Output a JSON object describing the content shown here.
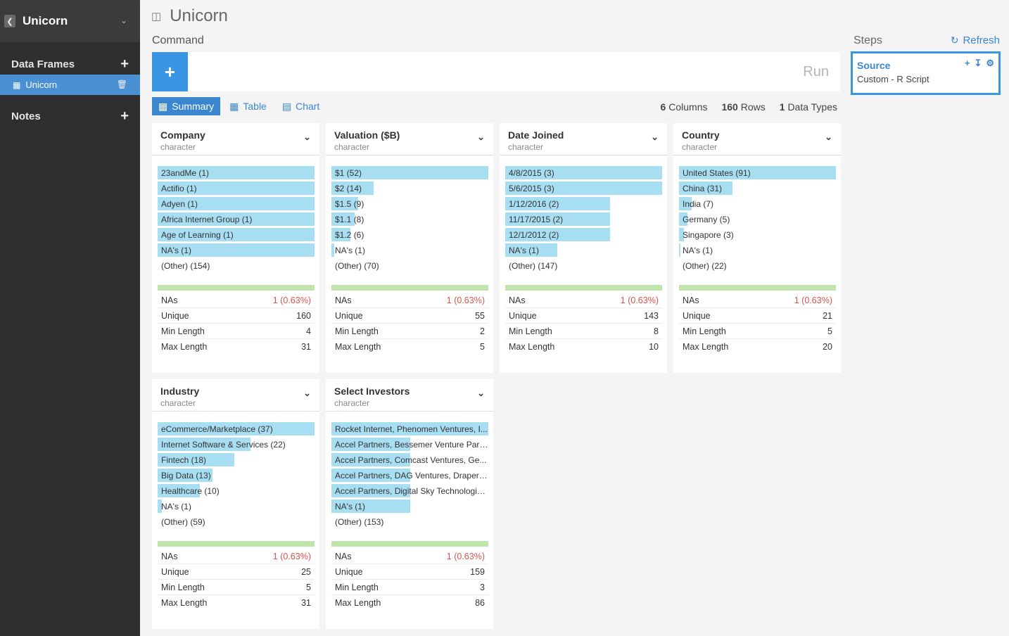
{
  "sidebar": {
    "title": "Unicorn",
    "data_frames_label": "Data Frames",
    "item_label": "Unicorn",
    "notes_label": "Notes"
  },
  "main": {
    "title": "Unicorn",
    "command_label": "Command",
    "run_label": "Run",
    "tabs": [
      {
        "label": "Summary"
      },
      {
        "label": "Table"
      },
      {
        "label": "Chart"
      }
    ],
    "stats": {
      "columns_num": "6",
      "columns_label": "Columns",
      "rows_num": "160",
      "rows_label": "Rows",
      "types_num": "1",
      "types_label": "Data Types"
    }
  },
  "steps": {
    "label": "Steps",
    "refresh_label": "Refresh",
    "source_title": "Source",
    "source_desc": "Custom - R Script"
  },
  "columns": [
    {
      "title": "Company",
      "type": "character",
      "freq": [
        {
          "label": "23andMe (1)",
          "fill": 1.0
        },
        {
          "label": "Actifio (1)",
          "fill": 1.0
        },
        {
          "label": "Adyen (1)",
          "fill": 1.0
        },
        {
          "label": "Africa Internet Group (1)",
          "fill": 1.0
        },
        {
          "label": "Age of Learning (1)",
          "fill": 1.0
        },
        {
          "label": "NA's (1)",
          "fill": 1.0
        },
        {
          "label": "(Other) (154)",
          "fill": 0
        }
      ],
      "summary": [
        {
          "label": "NAs",
          "value": "1 (0.63%)"
        },
        {
          "label": "Unique",
          "value": "160"
        },
        {
          "label": "Min Length",
          "value": "4"
        },
        {
          "label": "Max Length",
          "value": "31"
        }
      ]
    },
    {
      "title": "Valuation ($B)",
      "type": "character",
      "freq": [
        {
          "label": "$1 (52)",
          "fill": 1.0
        },
        {
          "label": "$2 (14)",
          "fill": 0.27
        },
        {
          "label": "$1.5 (9)",
          "fill": 0.17
        },
        {
          "label": "$1.1 (8)",
          "fill": 0.15
        },
        {
          "label": "$1.2 (6)",
          "fill": 0.12
        },
        {
          "label": "NA's (1)",
          "fill": 0.02
        },
        {
          "label": "(Other) (70)",
          "fill": 0
        }
      ],
      "summary": [
        {
          "label": "NAs",
          "value": "1 (0.63%)"
        },
        {
          "label": "Unique",
          "value": "55"
        },
        {
          "label": "Min Length",
          "value": "2"
        },
        {
          "label": "Max Length",
          "value": "5"
        }
      ]
    },
    {
      "title": "Date Joined",
      "type": "character",
      "freq": [
        {
          "label": "4/8/2015 (3)",
          "fill": 1.0
        },
        {
          "label": "5/6/2015 (3)",
          "fill": 1.0
        },
        {
          "label": "1/12/2016 (2)",
          "fill": 0.67
        },
        {
          "label": "11/17/2015 (2)",
          "fill": 0.67
        },
        {
          "label": "12/1/2012 (2)",
          "fill": 0.67
        },
        {
          "label": "NA's (1)",
          "fill": 0.33
        },
        {
          "label": "(Other) (147)",
          "fill": 0
        }
      ],
      "summary": [
        {
          "label": "NAs",
          "value": "1 (0.63%)"
        },
        {
          "label": "Unique",
          "value": "143"
        },
        {
          "label": "Min Length",
          "value": "8"
        },
        {
          "label": "Max Length",
          "value": "10"
        }
      ]
    },
    {
      "title": "Country",
      "type": "character",
      "freq": [
        {
          "label": "United States (91)",
          "fill": 1.0
        },
        {
          "label": "China (31)",
          "fill": 0.34
        },
        {
          "label": "India (7)",
          "fill": 0.08
        },
        {
          "label": "Germany (5)",
          "fill": 0.055
        },
        {
          "label": "Singapore (3)",
          "fill": 0.033
        },
        {
          "label": "NA's (1)",
          "fill": 0.011
        },
        {
          "label": "(Other) (22)",
          "fill": 0
        }
      ],
      "summary": [
        {
          "label": "NAs",
          "value": "1 (0.63%)"
        },
        {
          "label": "Unique",
          "value": "21"
        },
        {
          "label": "Min Length",
          "value": "5"
        },
        {
          "label": "Max Length",
          "value": "20"
        }
      ]
    },
    {
      "title": "Industry",
      "type": "character",
      "freq": [
        {
          "label": "eCommerce/Marketplace (37)",
          "fill": 1.0
        },
        {
          "label": "Internet Software & Services (22)",
          "fill": 0.59
        },
        {
          "label": "Fintech (18)",
          "fill": 0.49
        },
        {
          "label": "Big Data (13)",
          "fill": 0.35
        },
        {
          "label": "Healthcare (10)",
          "fill": 0.27
        },
        {
          "label": "NA's (1)",
          "fill": 0.027
        },
        {
          "label": "(Other) (59)",
          "fill": 0
        }
      ],
      "summary": [
        {
          "label": "NAs",
          "value": "1 (0.63%)"
        },
        {
          "label": "Unique",
          "value": "25"
        },
        {
          "label": "Min Length",
          "value": "5"
        },
        {
          "label": "Max Length",
          "value": "31"
        }
      ]
    },
    {
      "title": "Select Investors",
      "type": "character",
      "freq": [
        {
          "label": "Rocket Internet, Phenomen Ventures, I...",
          "fill": 1.0
        },
        {
          "label": "Accel Partners, Bessemer Venture Part...",
          "fill": 0.5
        },
        {
          "label": "Accel Partners, Comcast Ventures, Ge...",
          "fill": 0.5
        },
        {
          "label": "Accel Partners, DAG Ventures, Draper ...",
          "fill": 0.5
        },
        {
          "label": "Accel Partners, Digital Sky Technologie...",
          "fill": 0.5
        },
        {
          "label": "NA's (1)",
          "fill": 0.5
        },
        {
          "label": "(Other) (153)",
          "fill": 0
        }
      ],
      "summary": [
        {
          "label": "NAs",
          "value": "1 (0.63%)"
        },
        {
          "label": "Unique",
          "value": "159"
        },
        {
          "label": "Min Length",
          "value": "3"
        },
        {
          "label": "Max Length",
          "value": "86"
        }
      ]
    }
  ]
}
